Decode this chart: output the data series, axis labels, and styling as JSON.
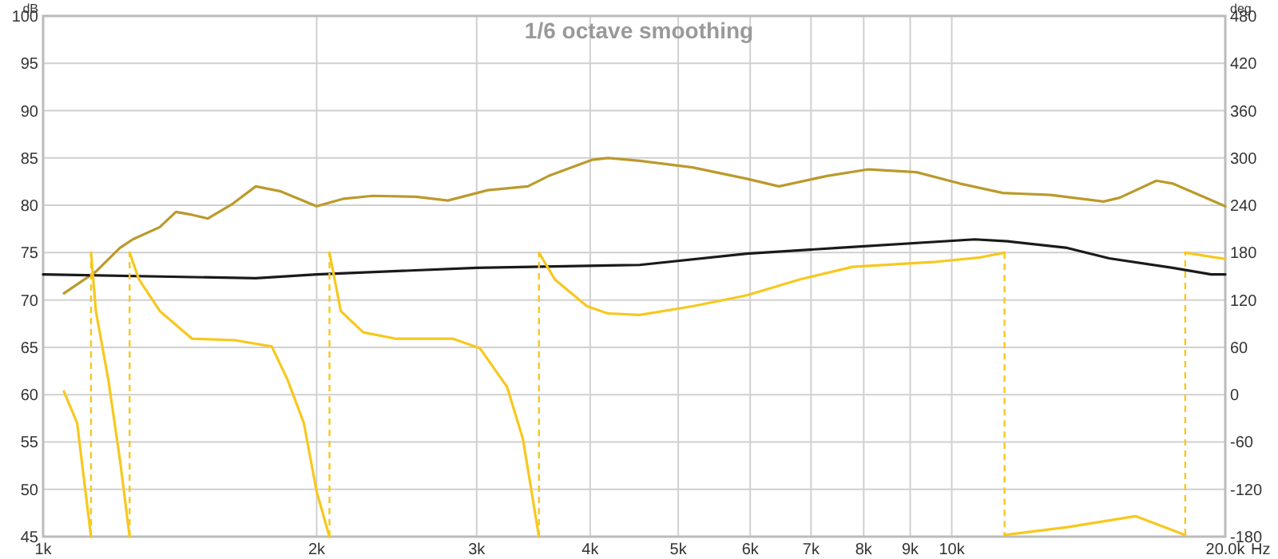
{
  "chart_data": {
    "type": "line",
    "title": "1/6 octave smoothing",
    "xlabel": "Hz",
    "ylabel": "dB",
    "y2label": "deg",
    "log": "x",
    "grid": true,
    "xlim": [
      1000,
      20000
    ],
    "xticks": [
      {
        "value": 1000,
        "label": "1k"
      },
      {
        "value": 2000,
        "label": "2k"
      },
      {
        "value": 3000,
        "label": "3k"
      },
      {
        "value": 4000,
        "label": "4k"
      },
      {
        "value": 5000,
        "label": "5k"
      },
      {
        "value": 6000,
        "label": "6k"
      },
      {
        "value": 7000,
        "label": "7k"
      },
      {
        "value": 8000,
        "label": "8k"
      },
      {
        "value": 9000,
        "label": "9k"
      },
      {
        "value": 10000,
        "label": "10k"
      },
      {
        "value": 20000,
        "label": "20.0k"
      }
    ],
    "ylim": [
      45,
      100
    ],
    "yticks": [
      45,
      50,
      55,
      60,
      65,
      70,
      75,
      80,
      85,
      90,
      95,
      100
    ],
    "y2lim": [
      -180,
      480
    ],
    "y2ticks": [
      -180,
      -120,
      -60,
      0,
      60,
      120,
      180,
      240,
      300,
      360,
      420,
      480
    ],
    "series": [
      {
        "color": "#bb9a2c",
        "x": [
          1054,
          1143,
          1215,
          1255,
          1344,
          1400,
          1458,
          1518,
          1613,
          1714,
          1822,
          2000,
          2142,
          2305,
          2572,
          2789,
          3086,
          3415,
          3600,
          4017,
          4183,
          4535,
          5184,
          5950,
          6453,
          7286,
          8100,
          9146,
          10205,
          11384,
          12852,
          14690,
          15300,
          16800,
          17500,
          20000
        ],
        "values": [
          70.7,
          73,
          75.5,
          76.4,
          77.7,
          79.3,
          79,
          78.6,
          80.1,
          82,
          81.5,
          79.9,
          80.7,
          81,
          80.9,
          80.5,
          81.6,
          82,
          83.1,
          84.8,
          85,
          84.7,
          84,
          82.8,
          82,
          83.1,
          83.8,
          83.5,
          82.3,
          81.3,
          81.1,
          80.4,
          80.8,
          82.6,
          82.3,
          79.9
        ]
      },
      {
        "color": "#1a1a1a",
        "x": [
          1000,
          1714,
          2000,
          3000,
          4535,
          5950,
          7500,
          10600,
          11520,
          13400,
          14900,
          17500,
          19300,
          20000
        ],
        "values": [
          72.7,
          72.3,
          72.7,
          73.4,
          73.7,
          74.9,
          75.5,
          76.4,
          76.2,
          75.5,
          74.4,
          73.4,
          72.7,
          72.7
        ]
      },
      {
        "color": "#f7c81e",
        "axis": "y2",
        "line_style": "solid",
        "x": [
          1054,
          1090,
          1110,
          1129,
          1129,
          1143,
          1180,
          1215,
          1245,
          1245,
          1275,
          1344,
          1458,
          1626,
          1785,
          1859,
          1936,
          2000,
          2066,
          2066,
          2126,
          2250,
          2440,
          2822,
          3024,
          3240,
          3373,
          3513,
          3513,
          3658,
          3968,
          4183,
          4535,
          5184,
          5950,
          6800,
          7780,
          9520,
          10750,
          11430,
          11430,
          13400,
          15930,
          18070,
          18070,
          20000
        ],
        "values": [
          4,
          -36,
          -111,
          -180,
          180,
          106,
          18,
          -83,
          -180,
          180,
          146,
          106,
          71,
          69,
          61,
          18,
          -36,
          -123,
          -180,
          180,
          106,
          79,
          71,
          71,
          59,
          10,
          -56,
          -180,
          180,
          146,
          112,
          103,
          101,
          112,
          126,
          146,
          162,
          168,
          174,
          180,
          -178,
          -168,
          -154,
          -178,
          180,
          172
        ]
      }
    ]
  }
}
